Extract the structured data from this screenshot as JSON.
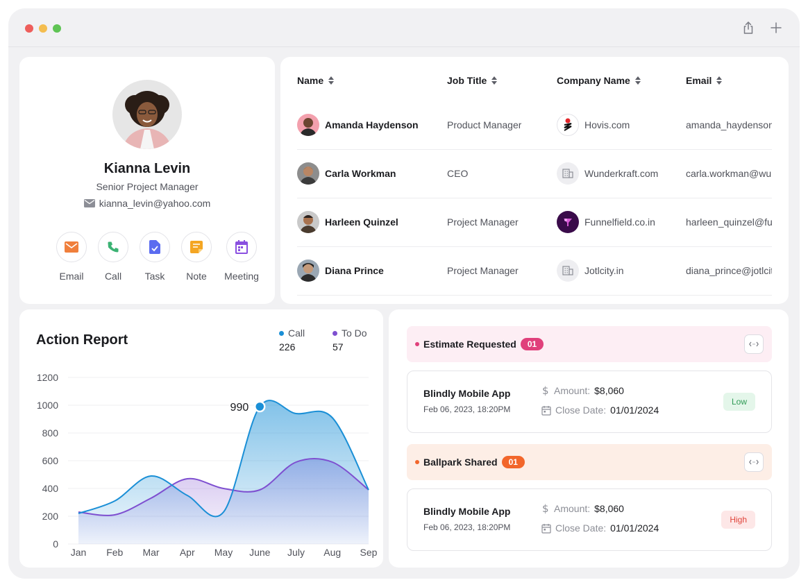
{
  "window": {
    "controls": [
      "close",
      "minimize",
      "maximize"
    ],
    "toolbar_icons": [
      "share-icon",
      "plus-icon"
    ]
  },
  "profile": {
    "name": "Kianna Levin",
    "role": "Senior Project Manager",
    "email": "kianna_levin@yahoo.com",
    "actions": [
      {
        "label": "Email",
        "icon": "email-icon",
        "color": "#f07f3c"
      },
      {
        "label": "Call",
        "icon": "phone-icon",
        "color": "#3bb273"
      },
      {
        "label": "Task",
        "icon": "task-icon",
        "color": "#5b6cf0"
      },
      {
        "label": "Note",
        "icon": "note-icon",
        "color": "#f4a623"
      },
      {
        "label": "Meeting",
        "icon": "calendar-icon",
        "color": "#8a4fe0"
      }
    ]
  },
  "contacts": {
    "columns": [
      "Name",
      "Job Title",
      "Company Name",
      "Email"
    ],
    "rows": [
      {
        "name": "Amanda Haydenson",
        "job": "Product Manager",
        "company": "Hovis.com",
        "email": "amanda_haydenson@hovis.com"
      },
      {
        "name": "Carla Workman",
        "job": "CEO",
        "company": "Wunderkraft.com",
        "email": "carla.workman@wunderkraft.com"
      },
      {
        "name": "Harleen Quinzel",
        "job": "Project Manager",
        "company": "Funnelfield.co.in",
        "email": "harleen_quinzel@funnelfield.co.in"
      },
      {
        "name": "Diana Prince",
        "job": "Project Manager",
        "company": "Jotlcity.in",
        "email": "diana_prince@jotlcity.in"
      }
    ]
  },
  "action_report": {
    "title": "Action Report",
    "legend": [
      {
        "name": "Call",
        "value": "226",
        "color": "#1a8fd6"
      },
      {
        "name": "To Do",
        "value": "57",
        "color": "#7e4fd0"
      }
    ],
    "highlight_label": "990"
  },
  "chart_data": {
    "type": "area",
    "title": "Action Report",
    "categories": [
      "Jan",
      "Feb",
      "Mar",
      "Apr",
      "May",
      "June",
      "July",
      "Aug",
      "Sep"
    ],
    "y_ticks": [
      "1200",
      "1000",
      "800",
      "600",
      "400",
      "200",
      "0"
    ],
    "ylim": [
      0,
      1200
    ],
    "grid": true,
    "legend_position": "top-right",
    "series": [
      {
        "name": "Call",
        "values": [
          220,
          310,
          490,
          350,
          230,
          990,
          940,
          910,
          390
        ],
        "color": "#1a8fd6"
      },
      {
        "name": "To Do",
        "values": [
          230,
          210,
          330,
          470,
          400,
          390,
          590,
          590,
          390
        ],
        "color": "#7e4fd0"
      }
    ],
    "highlight": {
      "series": "Call",
      "category": "June",
      "value": 990
    }
  },
  "deals": {
    "stages": [
      {
        "title": "Estimate Requested",
        "count": "01",
        "bg": "#fdeef4",
        "dot": "#e0407b",
        "badge": "#e0407b",
        "deal": {
          "name": "Blindly Mobile App",
          "date": "Feb 06, 2023, 18:20PM",
          "amount_label": "Amount:",
          "amount": "$8,060",
          "close_label": "Close Date:",
          "close": "01/01/2024",
          "priority": "Low",
          "priority_bg": "#e4f6ea",
          "priority_fg": "#2f9a55"
        }
      },
      {
        "title": "Ballpark Shared",
        "count": "01",
        "bg": "#fdeee6",
        "dot": "#f2662b",
        "badge": "#f2662b",
        "deal": {
          "name": "Blindly Mobile App",
          "date": "Feb 06, 2023, 18:20PM",
          "amount_label": "Amount:",
          "amount": "$8,060",
          "close_label": "Close Date:",
          "close": "01/01/2024",
          "priority": "High",
          "priority_bg": "#fde7e7",
          "priority_fg": "#e0443a"
        }
      }
    ]
  }
}
